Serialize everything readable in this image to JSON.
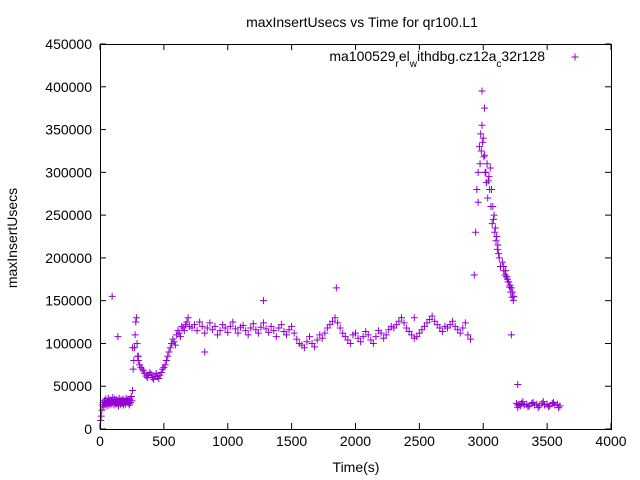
{
  "chart_data": {
    "type": "scatter",
    "title": "maxInsertUsecs vs Time for qr100.L1",
    "xlabel": "Time(s)",
    "ylabel": "maxInsertUsecs",
    "xlim": [
      0,
      4000
    ],
    "ylim": [
      0,
      450000
    ],
    "x_ticks": [
      0,
      500,
      1000,
      1500,
      2000,
      2500,
      3000,
      3500,
      4000
    ],
    "y_ticks": [
      0,
      50000,
      100000,
      150000,
      200000,
      250000,
      300000,
      350000,
      400000,
      450000
    ],
    "grid": false,
    "legend_position": "top-right",
    "series": [
      {
        "name_parts": [
          {
            "text": "ma100529",
            "sub": false
          },
          {
            "text": "r",
            "sub": true
          },
          {
            "text": "el",
            "sub": false
          },
          {
            "text": "w",
            "sub": true
          },
          {
            "text": "ithdbg.cz12a",
            "sub": false
          },
          {
            "text": "c",
            "sub": true
          },
          {
            "text": "32r128",
            "sub": false
          }
        ],
        "color": "#9400d3",
        "marker": "plus",
        "x": [
          5,
          10,
          15,
          20,
          25,
          30,
          35,
          40,
          45,
          50,
          55,
          60,
          65,
          70,
          75,
          80,
          85,
          90,
          95,
          100,
          105,
          110,
          115,
          120,
          125,
          130,
          135,
          140,
          145,
          150,
          155,
          160,
          165,
          170,
          175,
          180,
          185,
          190,
          195,
          200,
          205,
          210,
          215,
          220,
          225,
          230,
          235,
          240,
          245,
          250,
          255,
          260,
          265,
          270,
          275,
          280,
          285,
          290,
          295,
          300,
          310,
          320,
          330,
          340,
          350,
          360,
          370,
          380,
          390,
          400,
          410,
          420,
          430,
          440,
          450,
          460,
          470,
          480,
          490,
          500,
          510,
          520,
          530,
          540,
          550,
          560,
          570,
          580,
          590,
          600,
          610,
          620,
          630,
          640,
          650,
          660,
          670,
          680,
          690,
          700,
          720,
          740,
          760,
          780,
          800,
          820,
          840,
          860,
          880,
          900,
          920,
          940,
          960,
          980,
          1000,
          1020,
          1040,
          1060,
          1080,
          1100,
          1120,
          1140,
          1160,
          1180,
          1200,
          1220,
          1240,
          1260,
          1280,
          1300,
          1320,
          1340,
          1360,
          1380,
          1400,
          1420,
          1440,
          1460,
          1480,
          1500,
          1520,
          1540,
          1560,
          1580,
          1600,
          1620,
          1640,
          1660,
          1680,
          1700,
          1720,
          1740,
          1760,
          1780,
          1800,
          1820,
          1840,
          1860,
          1880,
          1900,
          1920,
          1940,
          1960,
          1980,
          2000,
          2020,
          2040,
          2060,
          2080,
          2100,
          2120,
          2140,
          2160,
          2180,
          2200,
          2220,
          2240,
          2260,
          2280,
          2300,
          2320,
          2340,
          2360,
          2380,
          2400,
          2420,
          2440,
          2460,
          2480,
          2500,
          2520,
          2540,
          2560,
          2580,
          2600,
          2620,
          2640,
          2660,
          2680,
          2700,
          2720,
          2740,
          2760,
          2780,
          2800,
          2820,
          2840,
          2860,
          2880,
          2900,
          2930,
          2940,
          2950,
          2960,
          2970,
          2980,
          2990,
          3000,
          3010,
          3020,
          3030,
          3040,
          3050,
          3060,
          3070,
          3080,
          3090,
          3100,
          3110,
          3120,
          2960,
          2975,
          2985,
          2995,
          3005,
          3015,
          3025,
          3035,
          3045,
          3055,
          3065,
          3075,
          3085,
          3095,
          3105,
          3115,
          3125,
          3135,
          3150,
          3160,
          3170,
          3180,
          3190,
          3200,
          3210,
          3220,
          3230,
          3240,
          3160,
          3175,
          3185,
          3195,
          3205,
          3215,
          3225,
          3235,
          3260,
          3270,
          3280,
          3290,
          3300,
          3320,
          3340,
          3360,
          3380,
          3400,
          3420,
          3440,
          3460,
          3480,
          3500,
          3520,
          3540,
          3560,
          3580,
          3600,
          3270,
          3310,
          3350,
          3390,
          3430,
          3470,
          3510,
          3550,
          3590,
          95,
          140,
          255,
          300,
          2990,
          3010,
          3220,
          3270,
          1280,
          1850,
          2460,
          820
        ],
        "y": [
          10000,
          15000,
          22000,
          28000,
          31000,
          26000,
          33000,
          29000,
          35000,
          30000,
          27000,
          32000,
          36000,
          28000,
          31000,
          34000,
          29000,
          33000,
          30000,
          37000,
          32000,
          28000,
          35000,
          31000,
          29000,
          34000,
          30000,
          33000,
          27000,
          36000,
          31000,
          29000,
          34000,
          32000,
          30000,
          35000,
          28000,
          33000,
          31000,
          29000,
          36000,
          32000,
          34000,
          30000,
          33000,
          28000,
          35000,
          31000,
          38000,
          33000,
          45000,
          70000,
          80000,
          95000,
          110000,
          125000,
          130000,
          100000,
          85000,
          80000,
          75000,
          72000,
          70000,
          68000,
          65000,
          62000,
          60000,
          63000,
          66000,
          64000,
          60000,
          58000,
          62000,
          65000,
          61000,
          59000,
          63000,
          66000,
          70000,
          72000,
          75000,
          80000,
          85000,
          90000,
          95000,
          100000,
          105000,
          102000,
          98000,
          110000,
          115000,
          112000,
          108000,
          120000,
          118000,
          115000,
          122000,
          125000,
          130000,
          120000,
          118000,
          122000,
          115000,
          125000,
          120000,
          112000,
          118000,
          124000,
          116000,
          120000,
          110000,
          115000,
          122000,
          118000,
          113000,
          120000,
          125000,
          117000,
          112000,
          119000,
          121000,
          115000,
          110000,
          118000,
          123000,
          116000,
          112000,
          119000,
          124000,
          117000,
          113000,
          120000,
          115000,
          108000,
          118000,
          122000,
          114000,
          110000,
          116000,
          120000,
          112000,
          105000,
          100000,
          98000,
          95000,
          102000,
          108000,
          100000,
          96000,
          104000,
          110000,
          106000,
          112000,
          118000,
          122000,
          126000,
          130000,
          124000,
          118000,
          112000,
          108000,
          104000,
          100000,
          110000,
          112000,
          106000,
          102000,
          108000,
          114000,
          110000,
          104000,
          100000,
          108000,
          115000,
          112000,
          106000,
          110000,
          116000,
          120000,
          118000,
          122000,
          126000,
          130000,
          124000,
          118000,
          114000,
          110000,
          106000,
          108000,
          112000,
          116000,
          120000,
          124000,
          128000,
          132000,
          126000,
          122000,
          118000,
          114000,
          120000,
          118000,
          122000,
          126000,
          120000,
          116000,
          112000,
          118000,
          124000,
          110000,
          105000,
          180000,
          230000,
          280000,
          300000,
          330000,
          345000,
          355000,
          340000,
          320000,
          300000,
          310000,
          290000,
          280000,
          260000,
          240000,
          245000,
          230000,
          220000,
          210000,
          205000,
          265000,
          310000,
          325000,
          335000,
          318000,
          300000,
          288000,
          270000,
          295000,
          305000,
          280000,
          260000,
          250000,
          235000,
          225000,
          215000,
          200000,
          190000,
          195000,
          185000,
          180000,
          178000,
          175000,
          172000,
          168000,
          165000,
          160000,
          155000,
          190000,
          185000,
          178000,
          172000,
          166000,
          160000,
          154000,
          150000,
          30000,
          28000,
          29000,
          27000,
          30000,
          28000,
          29000,
          27000,
          30000,
          28000,
          29000,
          27000,
          30000,
          28000,
          29000,
          27000,
          30000,
          28000,
          29000,
          27000,
          25000,
          32000,
          26000,
          31000,
          25000,
          32000,
          26000,
          31000,
          25000,
          155000,
          108000,
          95000,
          85000,
          395000,
          375000,
          110000,
          52000,
          150000,
          165000,
          130000,
          90000
        ]
      }
    ]
  }
}
